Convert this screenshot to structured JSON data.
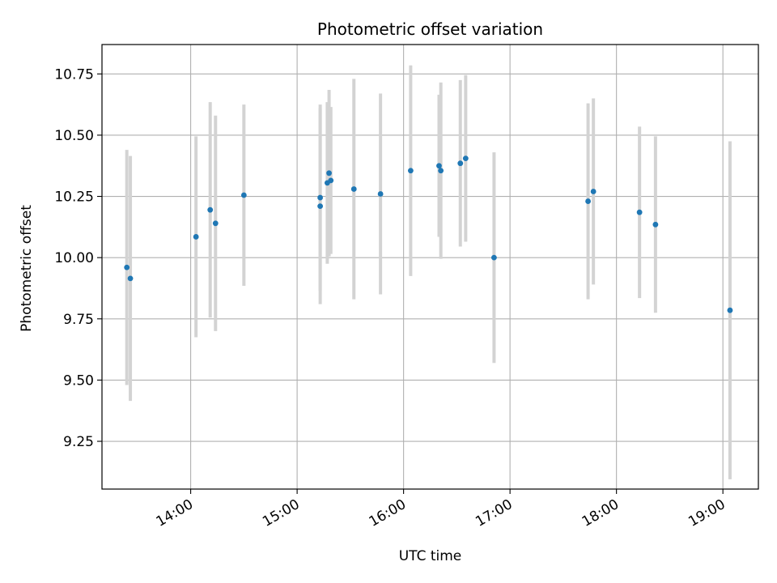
{
  "chart_data": {
    "type": "scatter",
    "title": "Photometric offset variation",
    "xlabel": "UTC time",
    "ylabel": "Photometric offset",
    "x_axis_type": "time",
    "xlim": [
      "13:10",
      "19:20"
    ],
    "ylim": [
      9.055,
      10.87
    ],
    "x_ticks": [
      "14:00",
      "15:00",
      "16:00",
      "17:00",
      "18:00",
      "19:00"
    ],
    "y_ticks": [
      9.25,
      9.5,
      9.75,
      10.0,
      10.25,
      10.5,
      10.75
    ],
    "y_tick_labels": [
      "9.25",
      "9.50",
      "9.75",
      "10.00",
      "10.25",
      "10.50",
      "10.75"
    ],
    "grid": true,
    "colors": {
      "marker": "#1f77b4",
      "errorbar": "#d3d3d3",
      "grid": "#b0b0b0"
    },
    "points": [
      {
        "x": "13:24",
        "y": 9.96,
        "yerr": 0.48
      },
      {
        "x": "13:26",
        "y": 9.915,
        "yerr": 0.5
      },
      {
        "x": "14:03",
        "y": 10.085,
        "yerr": 0.41
      },
      {
        "x": "14:11",
        "y": 10.195,
        "yerr": 0.44
      },
      {
        "x": "14:14",
        "y": 10.14,
        "yerr": 0.44
      },
      {
        "x": "14:30",
        "y": 10.255,
        "yerr": 0.37
      },
      {
        "x": "15:13",
        "y": 10.21,
        "yerr": 0.4
      },
      {
        "x": "15:13",
        "y": 10.245,
        "yerr": 0.38
      },
      {
        "x": "15:17",
        "y": 10.305,
        "yerr": 0.33
      },
      {
        "x": "15:18",
        "y": 10.345,
        "yerr": 0.34
      },
      {
        "x": "15:19",
        "y": 10.315,
        "yerr": 0.3
      },
      {
        "x": "15:32",
        "y": 10.28,
        "yerr": 0.45
      },
      {
        "x": "15:47",
        "y": 10.26,
        "yerr": 0.41
      },
      {
        "x": "16:04",
        "y": 10.355,
        "yerr": 0.43
      },
      {
        "x": "16:20",
        "y": 10.375,
        "yerr": 0.29
      },
      {
        "x": "16:21",
        "y": 10.355,
        "yerr": 0.36
      },
      {
        "x": "16:32",
        "y": 10.385,
        "yerr": 0.34
      },
      {
        "x": "16:35",
        "y": 10.405,
        "yerr": 0.34
      },
      {
        "x": "16:51",
        "y": 10.0,
        "yerr": 0.43
      },
      {
        "x": "17:44",
        "y": 10.23,
        "yerr": 0.4
      },
      {
        "x": "17:47",
        "y": 10.27,
        "yerr": 0.38
      },
      {
        "x": "18:13",
        "y": 10.185,
        "yerr": 0.35
      },
      {
        "x": "18:22",
        "y": 10.135,
        "yerr": 0.36
      },
      {
        "x": "19:04",
        "y": 9.785,
        "yerr": 0.69
      }
    ]
  }
}
